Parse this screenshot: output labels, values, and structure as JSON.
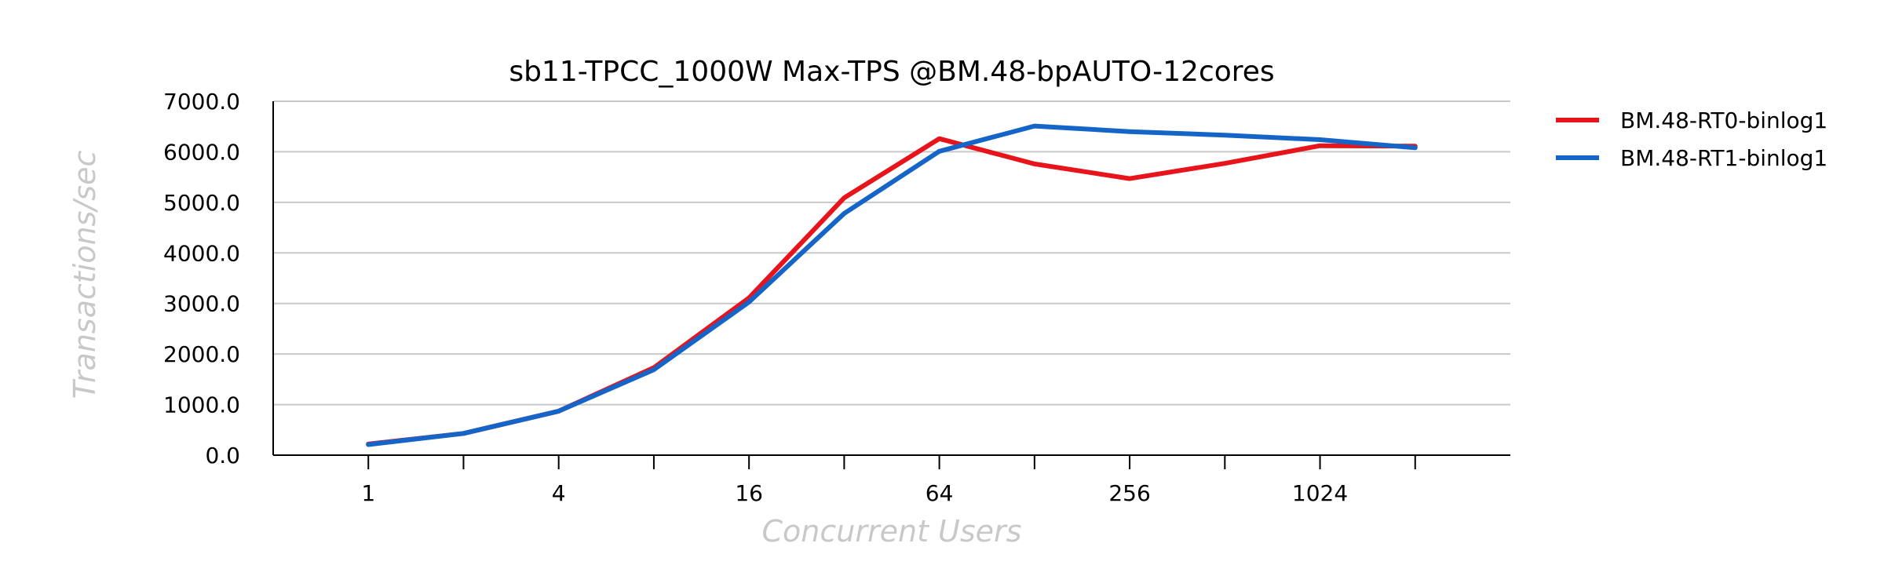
{
  "chart_data": {
    "type": "line",
    "title": "sb11-TPCC_1000W Max-TPS @BM.48-bpAUTO-12cores",
    "xlabel": "Concurrent Users",
    "ylabel": "Transactions/sec",
    "x_scale": "log2",
    "x": [
      1,
      2,
      4,
      8,
      16,
      32,
      64,
      128,
      256,
      512,
      1024,
      2048
    ],
    "x_tick_labels": [
      "1",
      "4",
      "16",
      "64",
      "256",
      "1024"
    ],
    "y_tick_labels": [
      "0.0",
      "1000.0",
      "2000.0",
      "3000.0",
      "4000.0",
      "5000.0",
      "6000.0",
      "7000.0"
    ],
    "ylim": [
      0,
      7000
    ],
    "grid": true,
    "legend_position": "right",
    "series": [
      {
        "name": "BM.48-RT0-binlog1",
        "color": "#e8141b",
        "values": [
          220,
          430,
          870,
          1730,
          3110,
          5090,
          6260,
          5760,
          5470,
          5770,
          6120,
          6110
        ]
      },
      {
        "name": "BM.48-RT1-binlog1",
        "color": "#1565c8",
        "values": [
          210,
          430,
          870,
          1690,
          3030,
          4780,
          6010,
          6510,
          6400,
          6330,
          6240,
          6080
        ]
      }
    ]
  }
}
